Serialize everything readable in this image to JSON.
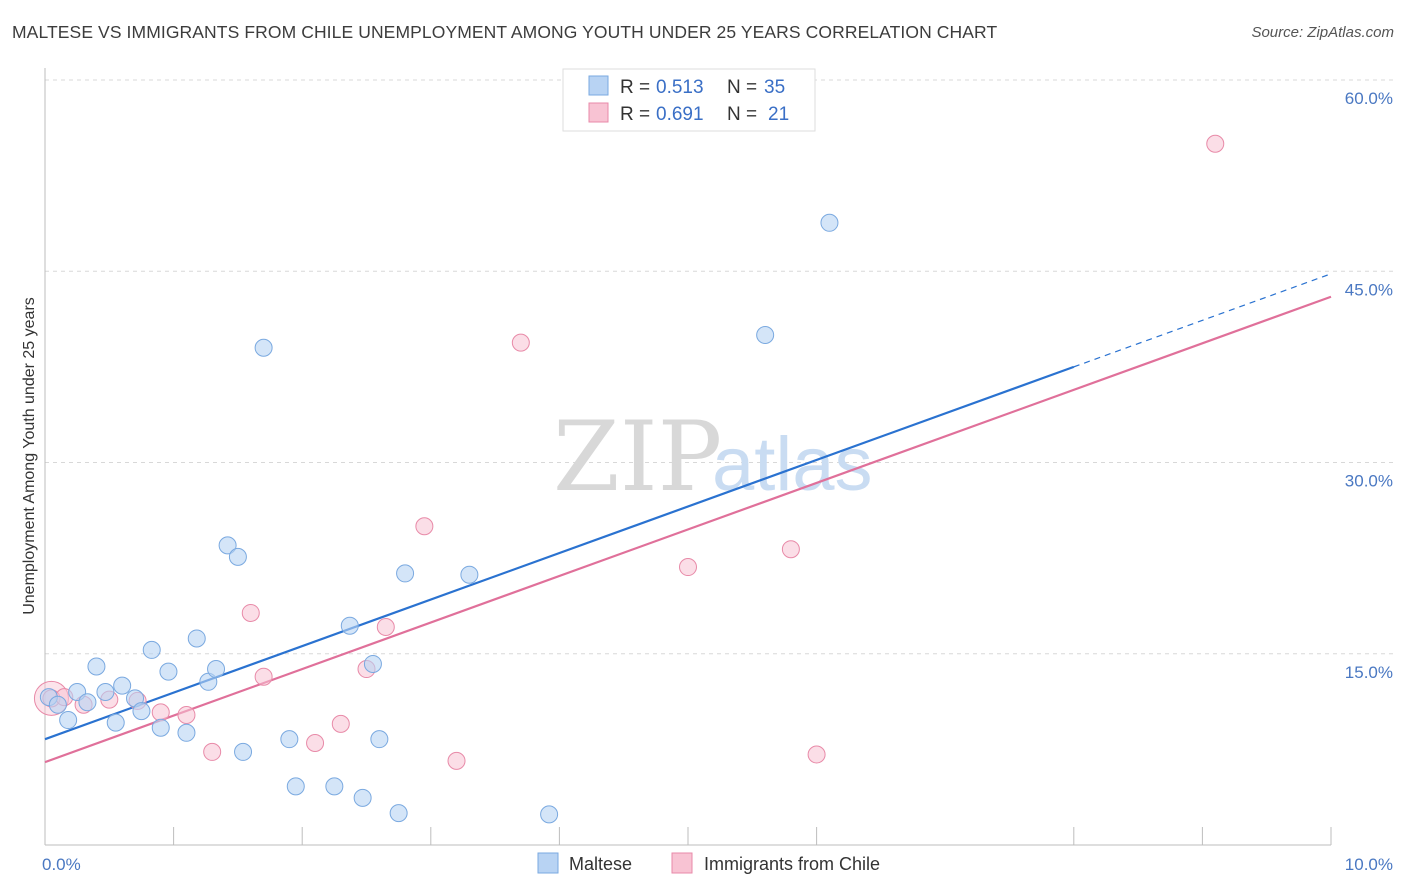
{
  "title": "MALTESE VS IMMIGRANTS FROM CHILE UNEMPLOYMENT AMONG YOUTH UNDER 25 YEARS CORRELATION CHART",
  "source": "Source: ZipAtlas.com",
  "watermark": {
    "zip": "ZIP",
    "atlas": "atlas"
  },
  "colors": {
    "blue_fill": "#b8d3f3",
    "blue_stroke": "#7aa9e0",
    "blue_line": "#2a72d0",
    "pink_fill": "#f8c3d3",
    "pink_stroke": "#e88aa8",
    "pink_line": "#e0709a",
    "grid": "#d8d8d8",
    "tick_label": "#4a78c2"
  },
  "legend": {
    "rows": [
      {
        "r_label": "R = ",
        "r_value": "0.513",
        "n_label": "N = ",
        "n_value": "35"
      },
      {
        "r_label": "R = ",
        "r_value": "0.691",
        "n_label": "N = ",
        "n_value": "21"
      }
    ]
  },
  "chart_data": {
    "type": "scatter",
    "title": "MALTESE VS IMMIGRANTS FROM CHILE UNEMPLOYMENT AMONG YOUTH UNDER 25 YEARS CORRELATION CHART",
    "xlabel": "",
    "ylabel": "Unemployment Among Youth under 25 years",
    "xlim": [
      0,
      10
    ],
    "ylim": [
      0,
      60
    ],
    "x_tick_labels": [
      "0.0%",
      "10.0%"
    ],
    "y_ticks": [
      15,
      30,
      45,
      60
    ],
    "y_tick_labels": [
      "15.0%",
      "30.0%",
      "45.0%",
      "60.0%"
    ],
    "grid": true,
    "legend_position": "top-center",
    "series": [
      {
        "name": "Maltese",
        "r": 0.513,
        "n": 35,
        "trend": {
          "x0": 0,
          "y0": 8.3,
          "x1": 8.0,
          "y1": 37.5,
          "dashed_to_x": 10,
          "dashed_to_y": 44.8
        },
        "points": [
          [
            0.03,
            11.6
          ],
          [
            0.1,
            11.0
          ],
          [
            0.18,
            9.8
          ],
          [
            0.25,
            12.0
          ],
          [
            0.33,
            11.2
          ],
          [
            0.4,
            14.0
          ],
          [
            0.47,
            12.0
          ],
          [
            0.55,
            9.6
          ],
          [
            0.6,
            12.5
          ],
          [
            0.7,
            11.5
          ],
          [
            0.75,
            10.5
          ],
          [
            0.83,
            15.3
          ],
          [
            0.9,
            9.2
          ],
          [
            0.96,
            13.6
          ],
          [
            1.1,
            8.8
          ],
          [
            1.18,
            16.2
          ],
          [
            1.27,
            12.8
          ],
          [
            1.33,
            13.8
          ],
          [
            1.42,
            23.5
          ],
          [
            1.5,
            22.6
          ],
          [
            1.54,
            7.3
          ],
          [
            1.7,
            39.0
          ],
          [
            1.9,
            8.3
          ],
          [
            1.95,
            4.6
          ],
          [
            2.25,
            4.6
          ],
          [
            2.37,
            17.2
          ],
          [
            2.47,
            3.7
          ],
          [
            2.55,
            14.2
          ],
          [
            2.6,
            8.3
          ],
          [
            2.75,
            2.5
          ],
          [
            2.8,
            21.3
          ],
          [
            3.3,
            21.2
          ],
          [
            3.92,
            2.4
          ],
          [
            5.6,
            40.0
          ],
          [
            6.1,
            48.8
          ]
        ]
      },
      {
        "name": "Immigrants from Chile",
        "r": 0.691,
        "n": 21,
        "trend": {
          "x0": 0,
          "y0": 6.5,
          "x1": 10,
          "y1": 43.0
        },
        "points": [
          [
            0.05,
            11.5
          ],
          [
            0.3,
            11.0
          ],
          [
            0.5,
            11.4
          ],
          [
            0.72,
            11.3
          ],
          [
            0.9,
            10.4
          ],
          [
            1.1,
            10.2
          ],
          [
            1.3,
            7.3
          ],
          [
            1.6,
            18.2
          ],
          [
            1.7,
            13.2
          ],
          [
            2.1,
            8.0
          ],
          [
            2.3,
            9.5
          ],
          [
            2.5,
            13.8
          ],
          [
            2.65,
            17.1
          ],
          [
            2.95,
            25.0
          ],
          [
            3.2,
            6.6
          ],
          [
            3.7,
            39.4
          ],
          [
            5.0,
            21.8
          ],
          [
            5.8,
            23.2
          ],
          [
            6.0,
            7.1
          ],
          [
            9.1,
            55.0
          ],
          [
            0.15,
            11.6
          ]
        ]
      }
    ]
  }
}
